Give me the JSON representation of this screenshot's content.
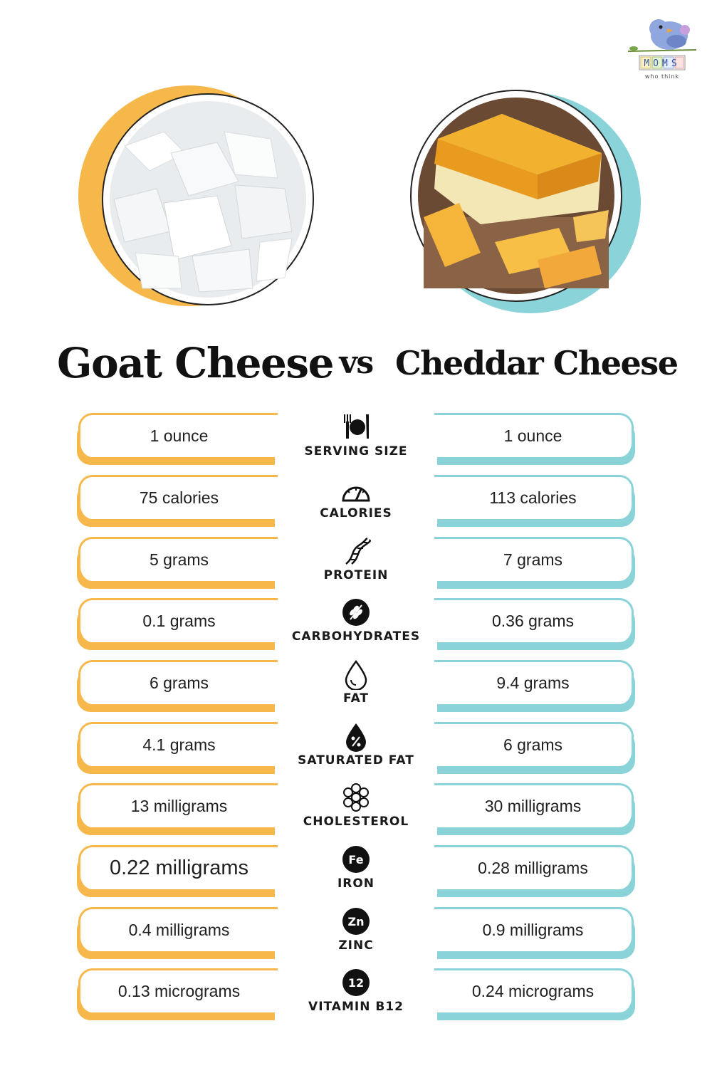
{
  "brand": {
    "logo_text": "MOMS",
    "logo_tagline": "who think"
  },
  "header": {
    "left_title": "Goat Cheese",
    "vs_label": "vs",
    "right_title": "Cheddar Cheese"
  },
  "colors": {
    "goat_accent": "#f6b84a",
    "cheddar_accent": "#8ad3d8",
    "text": "#1a1a1a"
  },
  "rows": [
    {
      "icon": "serving-size-icon",
      "label": "SERVING SIZE",
      "goat": "1 ounce",
      "cheddar": "1 ounce"
    },
    {
      "icon": "calories-gauge-icon",
      "label": "CALORIES",
      "goat": "75 calories",
      "cheddar": "113 calories"
    },
    {
      "icon": "protein-dna-icon",
      "label": "PROTEIN",
      "goat": "5 grams",
      "cheddar": "7 grams"
    },
    {
      "icon": "grain-icon",
      "label": "CARBOHYDRATES",
      "goat": "0.1 grams",
      "cheddar": "0.36 grams"
    },
    {
      "icon": "droplet-icon",
      "label": "FAT",
      "goat": "6 grams",
      "cheddar": "9.4 grams"
    },
    {
      "icon": "percent-droplet-icon",
      "label": "SATURATED FAT",
      "goat": "4.1 grams",
      "cheddar": "6 grams"
    },
    {
      "icon": "molecule-icon",
      "label": "CHOLESTEROL",
      "goat": "13 milligrams",
      "cheddar": "30 milligrams"
    },
    {
      "icon": "iron-badge-icon",
      "badge": "Fe",
      "label": "IRON",
      "goat": "0.22 milligrams",
      "cheddar": "0.28 milligrams"
    },
    {
      "icon": "zinc-badge-icon",
      "badge": "Zn",
      "label": "ZINC",
      "goat": "0.4 milligrams",
      "cheddar": "0.9 milligrams"
    },
    {
      "icon": "b12-badge-icon",
      "badge": "12",
      "label": "VITAMIN B12",
      "goat": "0.13 micrograms",
      "cheddar": "0.24 micrograms"
    }
  ]
}
